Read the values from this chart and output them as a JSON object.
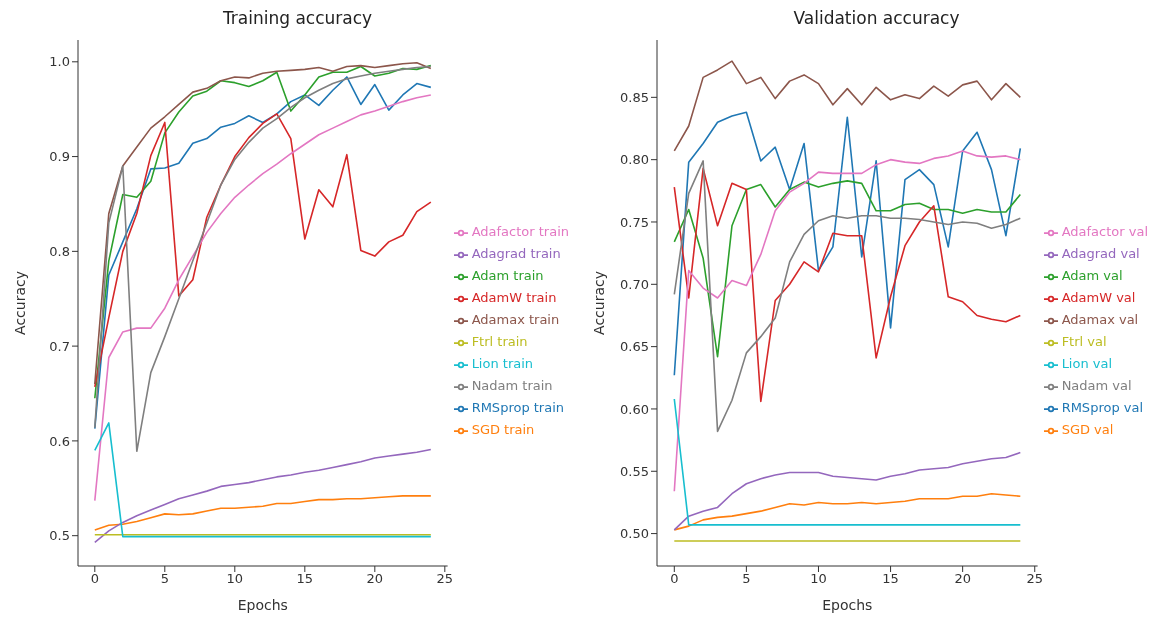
{
  "chart_data": [
    {
      "type": "line",
      "title": "Training accuracy",
      "xlabel": "Epochs",
      "ylabel": "Accuracy",
      "x": [
        0,
        1,
        2,
        3,
        4,
        5,
        6,
        7,
        8,
        9,
        10,
        11,
        12,
        13,
        14,
        15,
        16,
        17,
        18,
        19,
        20,
        21,
        22,
        23,
        24
      ],
      "xlim": [
        -1.2,
        25.2
      ],
      "xticks": [
        0,
        5,
        10,
        15,
        20,
        25
      ],
      "ylim": [
        0.468,
        1.023
      ],
      "yticks": [
        0.5,
        0.6,
        0.7,
        0.8,
        0.9,
        {
          "value": 1,
          "label": "1.0"
        }
      ],
      "grid": false,
      "legend": "right",
      "series": [
        {
          "name": "RMSprop train",
          "color": "#1f77b4",
          "values": [
            0.613,
            0.775,
            0.81,
            0.845,
            0.887,
            0.888,
            0.893,
            0.914,
            0.919,
            0.931,
            0.935,
            0.943,
            0.936,
            0.945,
            0.958,
            0.965,
            0.954,
            0.97,
            0.984,
            0.955,
            0.976,
            0.949,
            0.965,
            0.977,
            0.973
          ]
        },
        {
          "name": "SGD train",
          "color": "#ff7f0e",
          "values": [
            0.506,
            0.511,
            0.512,
            0.515,
            0.519,
            0.523,
            0.522,
            0.523,
            0.526,
            0.529,
            0.529,
            0.53,
            0.531,
            0.534,
            0.534,
            0.536,
            0.538,
            0.538,
            0.539,
            0.539,
            0.54,
            0.541,
            0.542,
            0.542,
            0.542
          ]
        },
        {
          "name": "Adam train",
          "color": "#2ca02c",
          "values": [
            0.645,
            0.79,
            0.86,
            0.857,
            0.874,
            0.925,
            0.947,
            0.964,
            0.969,
            0.98,
            0.978,
            0.974,
            0.98,
            0.989,
            0.948,
            0.965,
            0.984,
            0.989,
            0.989,
            0.995,
            0.985,
            0.988,
            0.993,
            0.992,
            0.996
          ]
        },
        {
          "name": "AdamW train",
          "color": "#d62728",
          "values": [
            0.657,
            0.73,
            0.8,
            0.84,
            0.901,
            0.936,
            0.753,
            0.77,
            0.836,
            0.87,
            0.9,
            0.92,
            0.935,
            0.945,
            0.919,
            0.813,
            0.865,
            0.847,
            0.902,
            0.801,
            0.795,
            0.81,
            0.817,
            0.842,
            0.852
          ]
        },
        {
          "name": "Adagrad train",
          "color": "#9467bd",
          "values": [
            0.493,
            0.505,
            0.514,
            0.521,
            0.527,
            0.533,
            0.539,
            0.543,
            0.547,
            0.552,
            0.554,
            0.556,
            0.559,
            0.562,
            0.564,
            0.567,
            0.569,
            0.572,
            0.575,
            0.578,
            0.582,
            0.584,
            0.586,
            0.588,
            0.591
          ]
        },
        {
          "name": "Adamax train",
          "color": "#8c564b",
          "values": [
            0.66,
            0.84,
            0.89,
            0.91,
            0.93,
            0.942,
            0.955,
            0.968,
            0.972,
            0.98,
            0.984,
            0.983,
            0.988,
            0.99,
            0.991,
            0.992,
            0.994,
            0.99,
            0.995,
            0.996,
            0.994,
            0.996,
            0.998,
            0.999,
            0.993
          ]
        },
        {
          "name": "Adafactor train",
          "color": "#e377c2",
          "values": [
            0.537,
            0.688,
            0.715,
            0.719,
            0.719,
            0.74,
            0.77,
            0.795,
            0.82,
            0.84,
            0.857,
            0.87,
            0.882,
            0.892,
            0.903,
            0.913,
            0.923,
            0.93,
            0.937,
            0.944,
            0.948,
            0.953,
            0.958,
            0.962,
            0.965
          ]
        },
        {
          "name": "Nadam train",
          "color": "#7f7f7f",
          "values": [
            0.614,
            0.83,
            0.89,
            0.589,
            0.672,
            0.71,
            0.75,
            0.79,
            0.83,
            0.87,
            0.897,
            0.915,
            0.93,
            0.94,
            0.952,
            0.962,
            0.97,
            0.977,
            0.982,
            0.985,
            0.988,
            0.99,
            0.992,
            0.994,
            0.995
          ]
        },
        {
          "name": "Ftrl train",
          "color": "#bcbd22",
          "values": [
            0.501,
            0.501,
            0.501,
            0.501,
            0.501,
            0.501,
            0.501,
            0.501,
            0.501,
            0.501,
            0.501,
            0.501,
            0.501,
            0.501,
            0.501,
            0.501,
            0.501,
            0.501,
            0.501,
            0.501,
            0.501,
            0.501,
            0.501,
            0.501,
            0.501
          ]
        },
        {
          "name": "Lion train",
          "color": "#17becf",
          "values": [
            0.59,
            0.619,
            0.499,
            0.499,
            0.499,
            0.499,
            0.499,
            0.499,
            0.499,
            0.499,
            0.499,
            0.499,
            0.499,
            0.499,
            0.499,
            0.499,
            0.499,
            0.499,
            0.499,
            0.499,
            0.499,
            0.499,
            0.499,
            0.499,
            0.499
          ]
        }
      ]
    },
    {
      "type": "line",
      "title": "Validation accuracy",
      "xlabel": "Epochs",
      "ylabel": "Accuracy",
      "x": [
        0,
        1,
        2,
        3,
        4,
        5,
        6,
        7,
        8,
        9,
        10,
        11,
        12,
        13,
        14,
        15,
        16,
        17,
        18,
        19,
        20,
        21,
        22,
        23,
        24
      ],
      "xlim": [
        -1.2,
        25.2
      ],
      "xticks": [
        0,
        5,
        10,
        15,
        20,
        25
      ],
      "ylim": [
        0.474,
        0.896
      ],
      "yticks": [
        {
          "value": 0.5,
          "label": "0.50"
        },
        {
          "value": 0.55,
          "label": "0.55"
        },
        {
          "value": 0.6,
          "label": "0.60"
        },
        {
          "value": 0.65,
          "label": "0.65"
        },
        {
          "value": 0.7,
          "label": "0.70"
        },
        {
          "value": 0.75,
          "label": "0.75"
        },
        {
          "value": 0.8,
          "label": "0.80"
        },
        {
          "value": 0.85,
          "label": "0.85"
        }
      ],
      "grid": false,
      "legend": "right",
      "series": [
        {
          "name": "RMSprop val",
          "color": "#1f77b4",
          "values": [
            0.627,
            0.798,
            0.813,
            0.83,
            0.835,
            0.838,
            0.799,
            0.81,
            0.776,
            0.813,
            0.711,
            0.73,
            0.834,
            0.722,
            0.799,
            0.665,
            0.784,
            0.792,
            0.78,
            0.73,
            0.807,
            0.822,
            0.792,
            0.739,
            0.809
          ]
        },
        {
          "name": "SGD val",
          "color": "#ff7f0e",
          "values": [
            0.503,
            0.506,
            0.511,
            0.513,
            0.514,
            0.516,
            0.518,
            0.521,
            0.524,
            0.523,
            0.525,
            0.524,
            0.524,
            0.525,
            0.524,
            0.525,
            0.526,
            0.528,
            0.528,
            0.528,
            0.53,
            0.53,
            0.532,
            0.531,
            0.53
          ]
        },
        {
          "name": "Adam val",
          "color": "#2ca02c",
          "values": [
            0.734,
            0.76,
            0.721,
            0.642,
            0.747,
            0.776,
            0.78,
            0.762,
            0.776,
            0.782,
            0.778,
            0.781,
            0.783,
            0.781,
            0.759,
            0.759,
            0.764,
            0.765,
            0.76,
            0.76,
            0.757,
            0.76,
            0.758,
            0.758,
            0.772
          ]
        },
        {
          "name": "AdamW val",
          "color": "#d62728",
          "values": [
            0.778,
            0.689,
            0.793,
            0.747,
            0.781,
            0.776,
            0.606,
            0.687,
            0.7,
            0.718,
            0.71,
            0.741,
            0.739,
            0.739,
            0.641,
            0.69,
            0.731,
            0.75,
            0.763,
            0.69,
            0.686,
            0.675,
            0.672,
            0.67,
            0.675
          ]
        },
        {
          "name": "Adagrad val",
          "color": "#9467bd",
          "values": [
            0.503,
            0.514,
            0.518,
            0.521,
            0.532,
            0.54,
            0.544,
            0.547,
            0.549,
            0.549,
            0.549,
            0.546,
            0.545,
            0.544,
            0.543,
            0.546,
            0.548,
            0.551,
            0.552,
            0.553,
            0.556,
            0.558,
            0.56,
            0.561,
            0.565
          ]
        },
        {
          "name": "Adamax val",
          "color": "#8c564b",
          "values": [
            0.807,
            0.827,
            0.866,
            0.872,
            0.879,
            0.861,
            0.866,
            0.849,
            0.863,
            0.868,
            0.861,
            0.844,
            0.857,
            0.844,
            0.858,
            0.848,
            0.852,
            0.849,
            0.859,
            0.851,
            0.86,
            0.863,
            0.848,
            0.861,
            0.85
          ]
        },
        {
          "name": "Adafactor val",
          "color": "#e377c2",
          "values": [
            0.534,
            0.711,
            0.697,
            0.689,
            0.703,
            0.699,
            0.724,
            0.759,
            0.774,
            0.781,
            0.79,
            0.789,
            0.789,
            0.789,
            0.796,
            0.8,
            0.798,
            0.797,
            0.801,
            0.803,
            0.807,
            0.803,
            0.802,
            0.803,
            0.8
          ]
        },
        {
          "name": "Nadam val",
          "color": "#7f7f7f",
          "values": [
            0.692,
            0.773,
            0.799,
            0.582,
            0.607,
            0.645,
            0.658,
            0.673,
            0.718,
            0.74,
            0.751,
            0.755,
            0.753,
            0.755,
            0.755,
            0.753,
            0.753,
            0.752,
            0.75,
            0.748,
            0.75,
            0.749,
            0.745,
            0.748,
            0.753
          ]
        },
        {
          "name": "Ftrl val",
          "color": "#bcbd22",
          "values": [
            0.494,
            0.494,
            0.494,
            0.494,
            0.494,
            0.494,
            0.494,
            0.494,
            0.494,
            0.494,
            0.494,
            0.494,
            0.494,
            0.494,
            0.494,
            0.494,
            0.494,
            0.494,
            0.494,
            0.494,
            0.494,
            0.494,
            0.494,
            0.494,
            0.494
          ]
        },
        {
          "name": "Lion val",
          "color": "#17becf",
          "values": [
            0.608,
            0.507,
            0.507,
            0.507,
            0.507,
            0.507,
            0.507,
            0.507,
            0.507,
            0.507,
            0.507,
            0.507,
            0.507,
            0.507,
            0.507,
            0.507,
            0.507,
            0.507,
            0.507,
            0.507,
            0.507,
            0.507,
            0.507,
            0.507,
            0.507
          ]
        }
      ]
    }
  ]
}
